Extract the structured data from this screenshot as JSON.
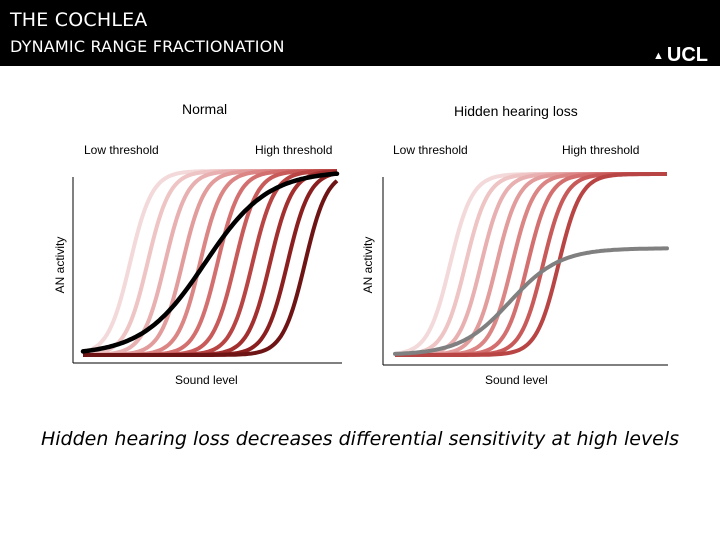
{
  "header": {
    "title": "THE COCHLEA",
    "subtitle": "DYNAMIC RANGE FRACTIONATION",
    "logo": "UCL"
  },
  "panels": [
    {
      "title": "Normal",
      "low_label": "Low threshold",
      "high_label": "High threshold",
      "xlabel": "Sound level",
      "ylabel": "AN activity",
      "fiber_colors": [
        "#f3d9d9",
        "#eec4c4",
        "#e8b0b0",
        "#e29c9c",
        "#db8585",
        "#d36f6f",
        "#c95a5a",
        "#b84444",
        "#a32f2f",
        "#8b1f1f",
        "#6e1414"
      ],
      "summary_color": "#000000",
      "summary_max": 1.0
    },
    {
      "title": "Hidden hearing loss",
      "low_label": "Low threshold",
      "high_label": "High threshold",
      "xlabel": "Sound level",
      "ylabel": "AN activity",
      "fiber_colors": [
        "#f3d9d9",
        "#eec4c4",
        "#e8b0b0",
        "#e29c9c",
        "#db8585",
        "#d36f6f",
        "#c95a5a",
        "#b84444"
      ],
      "summary_color": "#808080",
      "summary_max": 0.59
    }
  ],
  "caption": "Hidden hearing loss decreases differential sensitivity at high levels"
}
